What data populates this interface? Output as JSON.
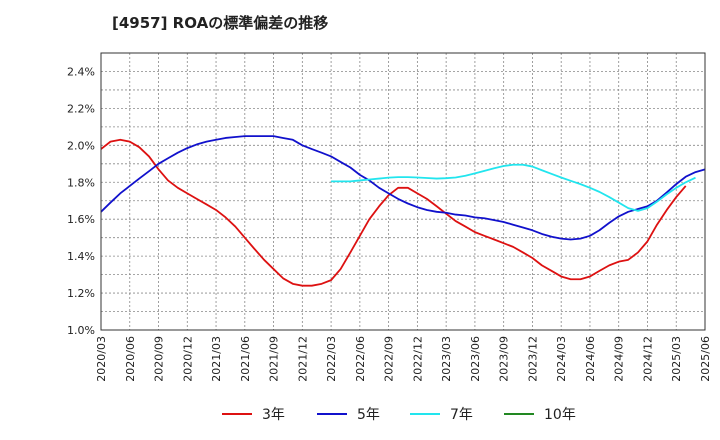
{
  "chart_data": {
    "type": "line",
    "title": "[4957]  ROAの標準偏差の推移",
    "xlabel": "",
    "ylabel": "",
    "ylim": [
      1.0,
      2.5
    ],
    "y_ticks": [
      "1.0%",
      "1.2%",
      "1.4%",
      "1.6%",
      "1.8%",
      "2.0%",
      "2.2%",
      "2.4%"
    ],
    "x_ticks": [
      "2020/03",
      "2020/06",
      "2020/09",
      "2020/12",
      "2021/03",
      "2021/06",
      "2021/09",
      "2021/12",
      "2022/03",
      "2022/06",
      "2022/09",
      "2022/12",
      "2023/03",
      "2023/06",
      "2023/09",
      "2023/12",
      "2024/03",
      "2024/06",
      "2024/09",
      "2024/12",
      "2025/03",
      "2025/06"
    ],
    "grid": true,
    "legend_position": "bottom",
    "series": [
      {
        "name": "3年",
        "color": "#dd1111",
        "points": [
          [
            0,
            1.98
          ],
          [
            0.33,
            2.02
          ],
          [
            0.67,
            2.03
          ],
          [
            1,
            2.02
          ],
          [
            1.33,
            1.99
          ],
          [
            1.67,
            1.94
          ],
          [
            2,
            1.87
          ],
          [
            2.33,
            1.81
          ],
          [
            2.67,
            1.77
          ],
          [
            3,
            1.74
          ],
          [
            3.33,
            1.71
          ],
          [
            3.67,
            1.68
          ],
          [
            4,
            1.65
          ],
          [
            4.33,
            1.61
          ],
          [
            4.67,
            1.56
          ],
          [
            5,
            1.5
          ],
          [
            5.33,
            1.44
          ],
          [
            5.67,
            1.38
          ],
          [
            6,
            1.33
          ],
          [
            6.33,
            1.28
          ],
          [
            6.67,
            1.25
          ],
          [
            7,
            1.24
          ],
          [
            7.33,
            1.24
          ],
          [
            7.67,
            1.25
          ],
          [
            8,
            1.27
          ],
          [
            8.33,
            1.33
          ],
          [
            8.67,
            1.42
          ],
          [
            9,
            1.51
          ],
          [
            9.33,
            1.6
          ],
          [
            9.67,
            1.67
          ],
          [
            10,
            1.73
          ],
          [
            10.33,
            1.77
          ],
          [
            10.67,
            1.77
          ],
          [
            11,
            1.74
          ],
          [
            11.33,
            1.71
          ],
          [
            11.67,
            1.67
          ],
          [
            12,
            1.63
          ],
          [
            12.33,
            1.59
          ],
          [
            12.67,
            1.56
          ],
          [
            13,
            1.53
          ],
          [
            13.33,
            1.51
          ],
          [
            13.67,
            1.49
          ],
          [
            14,
            1.47
          ],
          [
            14.33,
            1.45
          ],
          [
            14.67,
            1.42
          ],
          [
            15,
            1.39
          ],
          [
            15.33,
            1.35
          ],
          [
            15.67,
            1.32
          ],
          [
            16,
            1.29
          ],
          [
            16.33,
            1.275
          ],
          [
            16.67,
            1.275
          ],
          [
            17,
            1.29
          ],
          [
            17.33,
            1.32
          ],
          [
            17.67,
            1.35
          ],
          [
            18,
            1.37
          ],
          [
            18.33,
            1.38
          ],
          [
            18.67,
            1.42
          ],
          [
            19,
            1.48
          ],
          [
            19.33,
            1.57
          ],
          [
            19.67,
            1.65
          ],
          [
            20,
            1.72
          ],
          [
            20.33,
            1.78
          ]
        ]
      },
      {
        "name": "5年",
        "color": "#1111cc",
        "points": [
          [
            0,
            1.64
          ],
          [
            0.33,
            1.69
          ],
          [
            0.67,
            1.74
          ],
          [
            1,
            1.78
          ],
          [
            1.33,
            1.82
          ],
          [
            1.67,
            1.86
          ],
          [
            2,
            1.9
          ],
          [
            2.33,
            1.93
          ],
          [
            2.67,
            1.96
          ],
          [
            3,
            1.985
          ],
          [
            3.33,
            2.005
          ],
          [
            3.67,
            2.02
          ],
          [
            4,
            2.03
          ],
          [
            4.33,
            2.04
          ],
          [
            4.67,
            2.045
          ],
          [
            5,
            2.05
          ],
          [
            5.33,
            2.05
          ],
          [
            5.67,
            2.05
          ],
          [
            6,
            2.05
          ],
          [
            6.33,
            2.04
          ],
          [
            6.67,
            2.03
          ],
          [
            7,
            2.0
          ],
          [
            7.33,
            1.98
          ],
          [
            7.67,
            1.96
          ],
          [
            8,
            1.94
          ],
          [
            8.33,
            1.91
          ],
          [
            8.67,
            1.88
          ],
          [
            9,
            1.84
          ],
          [
            9.33,
            1.81
          ],
          [
            9.67,
            1.77
          ],
          [
            10,
            1.74
          ],
          [
            10.33,
            1.71
          ],
          [
            10.67,
            1.685
          ],
          [
            11,
            1.665
          ],
          [
            11.33,
            1.65
          ],
          [
            11.67,
            1.64
          ],
          [
            12,
            1.635
          ],
          [
            12.33,
            1.625
          ],
          [
            12.67,
            1.62
          ],
          [
            13,
            1.61
          ],
          [
            13.33,
            1.605
          ],
          [
            13.67,
            1.595
          ],
          [
            14,
            1.585
          ],
          [
            14.33,
            1.57
          ],
          [
            14.67,
            1.555
          ],
          [
            15,
            1.54
          ],
          [
            15.33,
            1.52
          ],
          [
            15.67,
            1.505
          ],
          [
            16,
            1.495
          ],
          [
            16.33,
            1.49
          ],
          [
            16.67,
            1.495
          ],
          [
            17,
            1.51
          ],
          [
            17.33,
            1.54
          ],
          [
            17.67,
            1.58
          ],
          [
            18,
            1.615
          ],
          [
            18.33,
            1.64
          ],
          [
            18.67,
            1.655
          ],
          [
            19,
            1.67
          ],
          [
            19.33,
            1.7
          ],
          [
            19.67,
            1.745
          ],
          [
            20,
            1.79
          ],
          [
            20.33,
            1.83
          ],
          [
            20.67,
            1.855
          ],
          [
            21,
            1.87
          ]
        ]
      },
      {
        "name": "7年",
        "color": "#22e5ee",
        "points": [
          [
            8,
            1.805
          ],
          [
            8.33,
            1.805
          ],
          [
            8.67,
            1.805
          ],
          [
            9,
            1.81
          ],
          [
            9.33,
            1.815
          ],
          [
            9.67,
            1.82
          ],
          [
            10,
            1.825
          ],
          [
            10.33,
            1.828
          ],
          [
            10.67,
            1.828
          ],
          [
            11,
            1.826
          ],
          [
            11.33,
            1.823
          ],
          [
            11.67,
            1.82
          ],
          [
            12,
            1.822
          ],
          [
            12.33,
            1.826
          ],
          [
            12.67,
            1.835
          ],
          [
            13,
            1.848
          ],
          [
            13.33,
            1.862
          ],
          [
            13.67,
            1.876
          ],
          [
            14,
            1.888
          ],
          [
            14.33,
            1.895
          ],
          [
            14.67,
            1.895
          ],
          [
            15,
            1.885
          ],
          [
            15.33,
            1.865
          ],
          [
            15.67,
            1.845
          ],
          [
            16,
            1.826
          ],
          [
            16.33,
            1.808
          ],
          [
            16.67,
            1.79
          ],
          [
            17,
            1.77
          ],
          [
            17.33,
            1.748
          ],
          [
            17.67,
            1.72
          ],
          [
            18,
            1.69
          ],
          [
            18.33,
            1.66
          ],
          [
            18.67,
            1.645
          ],
          [
            19,
            1.66
          ],
          [
            19.33,
            1.695
          ],
          [
            19.67,
            1.735
          ],
          [
            20,
            1.77
          ],
          [
            20.33,
            1.8
          ],
          [
            20.67,
            1.825
          ]
        ]
      },
      {
        "name": "10年",
        "color": "#228822",
        "points": []
      }
    ]
  }
}
